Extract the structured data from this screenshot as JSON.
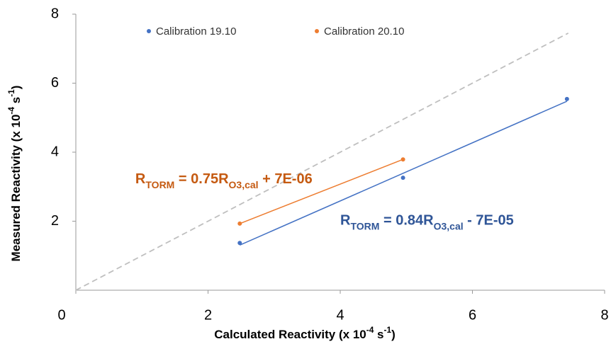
{
  "chart_data": {
    "type": "scatter",
    "x_label": [
      "Calculated Reactivity (x 10",
      "-4",
      " s",
      "-1",
      ")"
    ],
    "y_label": [
      "Measured Reactivity (x 10",
      "-4",
      " s",
      "-1",
      ")"
    ],
    "xlim": [
      0,
      8
    ],
    "ylim": [
      0,
      8
    ],
    "xticks": [
      0,
      2,
      4,
      6,
      8
    ],
    "yticks": [
      2,
      4,
      6,
      8
    ],
    "legend": "top",
    "series": [
      {
        "name": "Calibration 19.10",
        "color": "#4472c4",
        "x": [
          2.48,
          4.95,
          7.43
        ],
        "values": [
          1.37,
          3.26,
          5.54
        ]
      },
      {
        "name": "Calibration 20.10",
        "color": "#ed7d31",
        "x": [
          2.48,
          4.95
        ],
        "values": [
          1.93,
          3.79
        ]
      }
    ],
    "reference_line": {
      "color": "#bfbfbf",
      "x": [
        0,
        7.45
      ],
      "values": [
        0,
        7.45
      ]
    },
    "annotations": [
      {
        "parts": [
          "R",
          "TORM",
          " = 0.75R",
          "O3,cal",
          " + 7E-06"
        ],
        "color": "#c55a11",
        "x": 0.9,
        "y": 3.2
      },
      {
        "parts": [
          "R",
          "TORM",
          " = 0.84R",
          "O3,cal",
          "  - 7E-05"
        ],
        "color": "#2f5597",
        "x": 4.0,
        "y": 2.0
      }
    ]
  }
}
